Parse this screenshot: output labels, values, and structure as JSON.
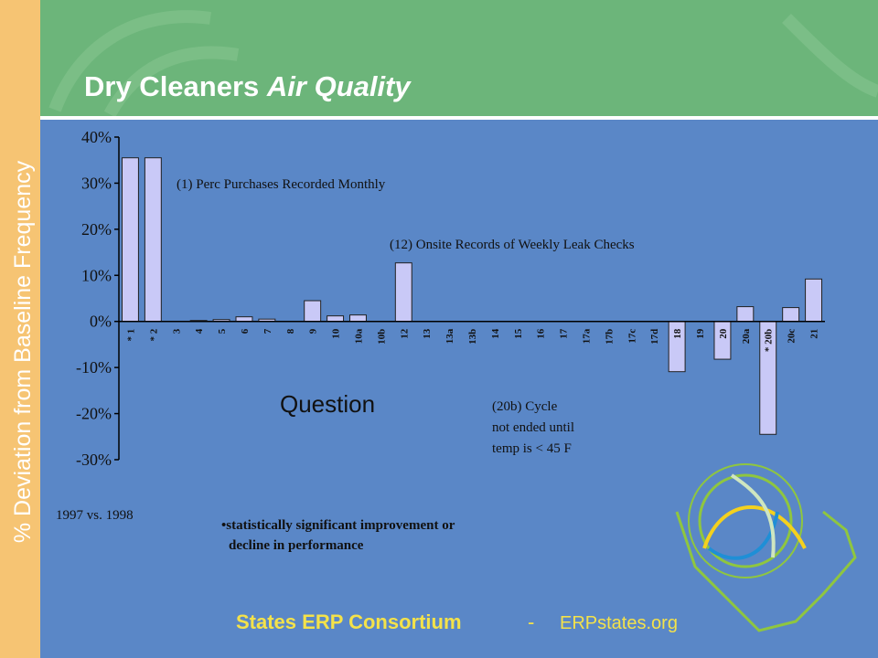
{
  "slide": {
    "side_label": "% Deviation from Baseline Frequency",
    "footer": {
      "org": "States ERP Consortium",
      "separator": "-",
      "site": "ERPstates.org"
    }
  },
  "chart_data": {
    "type": "bar",
    "title": "Dry Cleaners",
    "title_italic": "Air Quality",
    "categories": [
      "* 1",
      "* 2",
      "3",
      "4",
      "5",
      "6",
      "7",
      "8",
      "9",
      "10",
      "10a",
      "10b",
      "12",
      "13",
      "13a",
      "13b",
      "14",
      "15",
      "16",
      "17",
      "17a",
      "17b",
      "17c",
      "17d",
      "18",
      "19",
      "20",
      "20a",
      "* 20b",
      "20c",
      "21"
    ],
    "values": [
      35.5,
      35.5,
      0,
      0.2,
      0.4,
      1,
      0.5,
      0,
      4.5,
      1.2,
      1.4,
      0,
      12.7,
      0,
      0,
      0,
      0,
      0,
      0,
      0,
      0,
      0,
      0,
      0,
      -10.9,
      0,
      -8.2,
      3.2,
      -24.5,
      3,
      9.2
    ],
    "color": "#c9c9f7",
    "ylim": [
      -30,
      40
    ],
    "yticks": [
      {
        "value": -30,
        "label": "-30%"
      },
      {
        "value": -20,
        "label": "-20%"
      },
      {
        "value": -10,
        "label": "-10%"
      },
      {
        "value": 0,
        "label": "0%"
      },
      {
        "value": 10,
        "label": "10%"
      },
      {
        "value": 20,
        "label": "20%"
      },
      {
        "value": 30,
        "label": "30%"
      },
      {
        "value": 40,
        "label": "40%"
      }
    ],
    "annotations": {
      "note1": "(1) Perc Purchases Recorded Monthly",
      "note12": "(12) Onsite Records of Weekly Leak Checks",
      "question": "Question",
      "note20b": [
        "(20b) Cycle",
        "not ended until",
        "temp is < 45 F"
      ],
      "period": "1997 vs. 1998",
      "significance": [
        "•statistically significant improvement or",
        "decline in performance"
      ]
    }
  }
}
